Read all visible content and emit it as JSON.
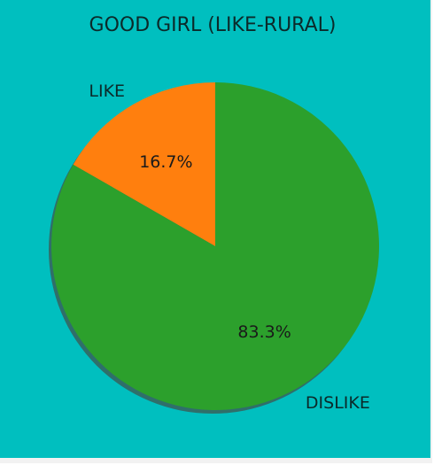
{
  "chart_data": {
    "type": "pie",
    "title": "GOOD GIRL (LIKE-RURAL)",
    "slices": [
      {
        "label": "LIKE",
        "value": 16.7,
        "pct_label": "16.7%",
        "color": "#ff7f0e"
      },
      {
        "label": "DISLIKE",
        "value": 83.3,
        "pct_label": "83.3%",
        "color": "#2ca02c"
      }
    ],
    "start_angle_deg": 90,
    "direction": "counterclockwise",
    "shadow": true
  },
  "colors": {
    "background": "#00bfbf",
    "shadow": "#2f6f6a"
  }
}
